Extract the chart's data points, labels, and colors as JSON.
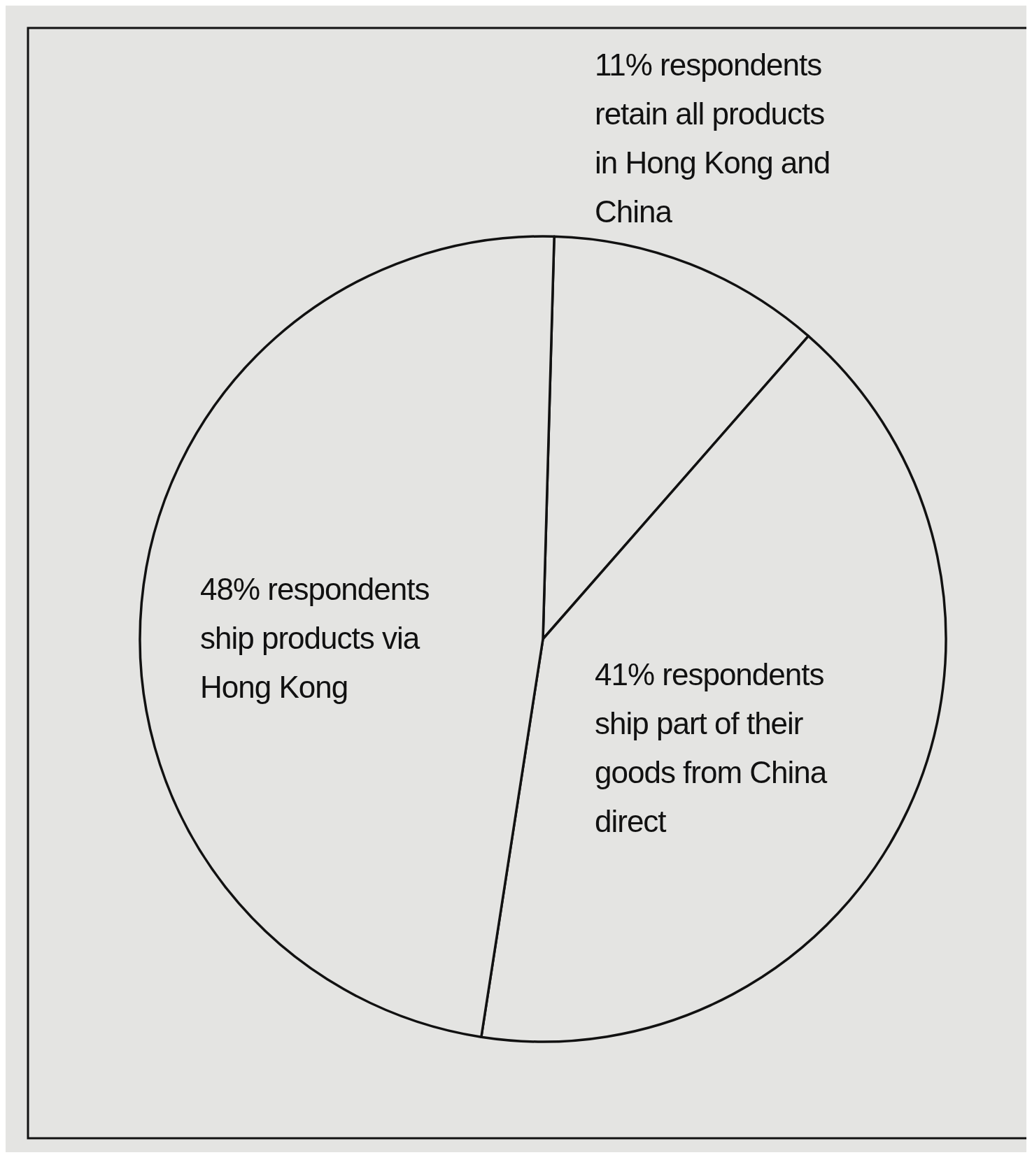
{
  "chart_data": {
    "type": "pie",
    "categories": [
      "11% respondents retain all products in Hong Kong and China",
      "41% respondents ship part of their goods from China direct",
      "48% respondents ship products via Hong Kong"
    ],
    "values": [
      11,
      41,
      48
    ],
    "colors": [
      "#e4e4e2",
      "#e4e4e2",
      "#e4e4e2"
    ]
  }
}
